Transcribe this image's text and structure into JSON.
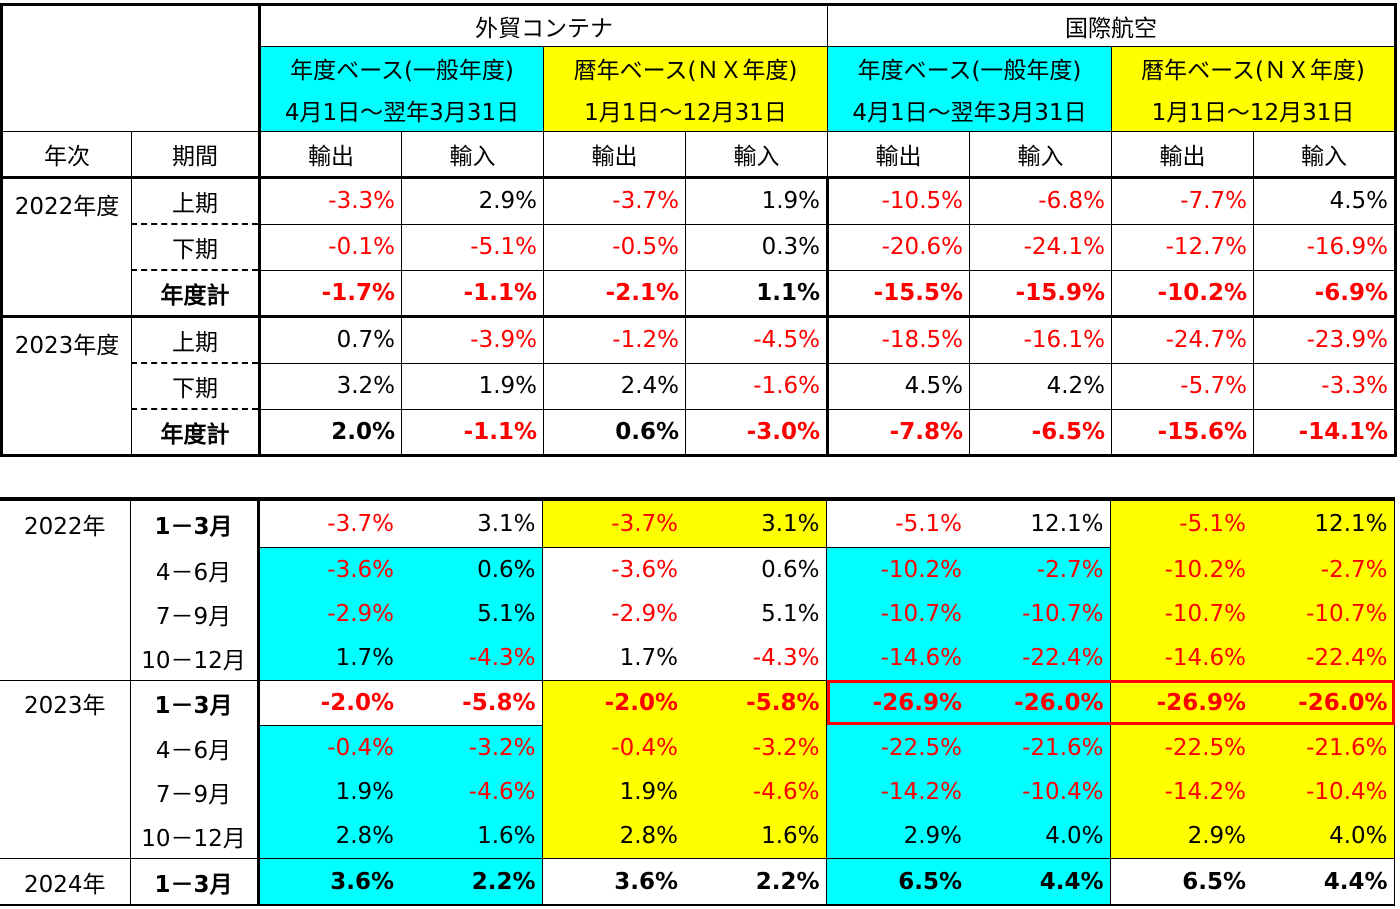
{
  "header": {
    "group1": "外貿コンテナ",
    "group2": "国際航空",
    "fiscal_basis": "年度ベース(一般年度)",
    "fiscal_period": "4月1日～翌年3月31日",
    "calendar_basis": "暦年ベース(ＮＸ年度)",
    "calendar_period": "1月1日～12月31日",
    "col_year": "年次",
    "col_period": "期間",
    "export": "輸出",
    "import": "輸入"
  },
  "fiscal_rows": [
    {
      "year": "2022年度",
      "period": "上期",
      "values": [
        "-3.3%",
        "2.9%",
        "-3.7%",
        "1.9%",
        "-10.5%",
        "-6.8%",
        "-7.7%",
        "4.5%"
      ]
    },
    {
      "year": "",
      "period": "下期",
      "values": [
        "-0.1%",
        "-5.1%",
        "-0.5%",
        "0.3%",
        "-20.6%",
        "-24.1%",
        "-12.7%",
        "-16.9%"
      ]
    },
    {
      "year": "",
      "period": "年度計",
      "values": [
        "-1.7%",
        "-1.1%",
        "-2.1%",
        "1.1%",
        "-15.5%",
        "-15.9%",
        "-10.2%",
        "-6.9%"
      ]
    },
    {
      "year": "2023年度",
      "period": "上期",
      "values": [
        "0.7%",
        "-3.9%",
        "-1.2%",
        "-4.5%",
        "-18.5%",
        "-16.1%",
        "-24.7%",
        "-23.9%"
      ]
    },
    {
      "year": "",
      "period": "下期",
      "values": [
        "3.2%",
        "1.9%",
        "2.4%",
        "-1.6%",
        "4.5%",
        "4.2%",
        "-5.7%",
        "-3.3%"
      ]
    },
    {
      "year": "",
      "period": "年度計",
      "values": [
        "2.0%",
        "-1.1%",
        "0.6%",
        "-3.0%",
        "-7.8%",
        "-6.5%",
        "-15.6%",
        "-14.1%"
      ]
    }
  ],
  "quarter_rows": [
    {
      "year": "2022年",
      "period": "1－3月",
      "values": [
        "-3.7%",
        "3.1%",
        "-3.7%",
        "3.1%",
        "-5.1%",
        "12.1%",
        "-5.1%",
        "12.1%"
      ]
    },
    {
      "year": "",
      "period": "4－6月",
      "values": [
        "-3.6%",
        "0.6%",
        "-3.6%",
        "0.6%",
        "-10.2%",
        "-2.7%",
        "-10.2%",
        "-2.7%"
      ]
    },
    {
      "year": "",
      "period": "7－9月",
      "values": [
        "-2.9%",
        "5.1%",
        "-2.9%",
        "5.1%",
        "-10.7%",
        "-10.7%",
        "-10.7%",
        "-10.7%"
      ]
    },
    {
      "year": "",
      "period": "10－12月",
      "values": [
        "1.7%",
        "-4.3%",
        "1.7%",
        "-4.3%",
        "-14.6%",
        "-22.4%",
        "-14.6%",
        "-22.4%"
      ]
    },
    {
      "year": "2023年",
      "period": "1－3月",
      "values": [
        "-2.0%",
        "-5.8%",
        "-2.0%",
        "-5.8%",
        "-26.9%",
        "-26.0%",
        "-26.9%",
        "-26.0%"
      ]
    },
    {
      "year": "",
      "period": "4－6月",
      "values": [
        "-0.4%",
        "-3.2%",
        "-0.4%",
        "-3.2%",
        "-22.5%",
        "-21.6%",
        "-22.5%",
        "-21.6%"
      ]
    },
    {
      "year": "",
      "period": "7－9月",
      "values": [
        "1.9%",
        "-4.6%",
        "1.9%",
        "-4.6%",
        "-14.2%",
        "-10.4%",
        "-14.2%",
        "-10.4%"
      ]
    },
    {
      "year": "",
      "period": "10－12月",
      "values": [
        "2.8%",
        "1.6%",
        "2.8%",
        "1.6%",
        "2.9%",
        "4.0%",
        "2.9%",
        "4.0%"
      ]
    },
    {
      "year": "2024年",
      "period": "1－3月",
      "values": [
        "3.6%",
        "2.2%",
        "3.6%",
        "2.2%",
        "6.5%",
        "4.4%",
        "6.5%",
        "4.4%"
      ]
    }
  ],
  "colors": {
    "cyan": "#00ffff",
    "yellow": "#ffff00",
    "negative": "#ff0000",
    "highlight": "#ff0000"
  }
}
